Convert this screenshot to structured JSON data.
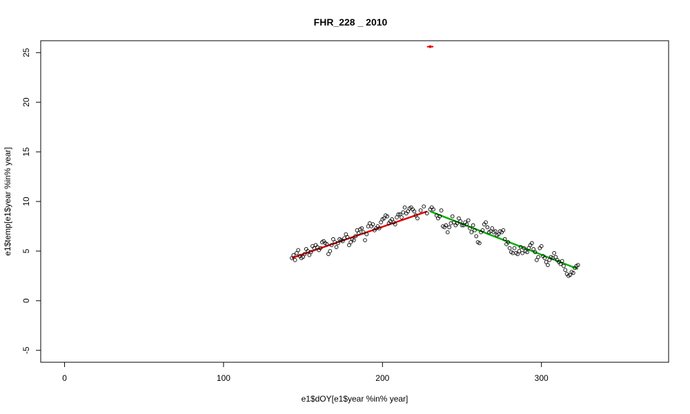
{
  "chart_data": {
    "type": "scatter",
    "title": "FHR_228 _ 2010",
    "xlabel": "e1$dOY[e1$year %in% year]",
    "ylabel": "e1$temp[e1$year %in% year]",
    "xlim": [
      -15,
      380
    ],
    "ylim": [
      -6.2,
      26.2
    ],
    "x_ticks": [
      0,
      100,
      200,
      300
    ],
    "y_ticks": [
      -5,
      0,
      5,
      10,
      15,
      20,
      25
    ],
    "grid": false,
    "legend": "none",
    "colors": {
      "points": "#000000",
      "segment1": "#e00000",
      "segment2": "#00b000",
      "breakpoint": "#e00000"
    },
    "points": [
      [
        143,
        4.3
      ],
      [
        144,
        4.6
      ],
      [
        145,
        4.1
      ],
      [
        146,
        4.8
      ],
      [
        147,
        5.1
      ],
      [
        148,
        4.5
      ],
      [
        149,
        4.3
      ],
      [
        150,
        4.4
      ],
      [
        151,
        4.7
      ],
      [
        152,
        5.2
      ],
      [
        153,
        5.0
      ],
      [
        154,
        4.6
      ],
      [
        155,
        4.9
      ],
      [
        156,
        5.5
      ],
      [
        157,
        5.3
      ],
      [
        158,
        5.6
      ],
      [
        159,
        5.4
      ],
      [
        160,
        5.1
      ],
      [
        161,
        5.3
      ],
      [
        162,
        5.9
      ],
      [
        163,
        6.0
      ],
      [
        164,
        5.8
      ],
      [
        165,
        5.7
      ],
      [
        166,
        4.7
      ],
      [
        167,
        5.0
      ],
      [
        168,
        5.6
      ],
      [
        169,
        6.2
      ],
      [
        170,
        5.9
      ],
      [
        171,
        5.4
      ],
      [
        172,
        5.8
      ],
      [
        173,
        6.2
      ],
      [
        174,
        6.1
      ],
      [
        175,
        6.0
      ],
      [
        176,
        6.3
      ],
      [
        177,
        6.7
      ],
      [
        178,
        6.4
      ],
      [
        179,
        5.6
      ],
      [
        180,
        5.9
      ],
      [
        181,
        6.2
      ],
      [
        182,
        6.1
      ],
      [
        183,
        6.5
      ],
      [
        184,
        7.1
      ],
      [
        185,
        6.8
      ],
      [
        186,
        7.2
      ],
      [
        187,
        7.3
      ],
      [
        188,
        6.9
      ],
      [
        189,
        6.1
      ],
      [
        190,
        6.7
      ],
      [
        191,
        7.5
      ],
      [
        192,
        7.8
      ],
      [
        193,
        7.5
      ],
      [
        194,
        7.7
      ],
      [
        195,
        7.1
      ],
      [
        196,
        7.3
      ],
      [
        197,
        7.5
      ],
      [
        198,
        7.3
      ],
      [
        199,
        7.9
      ],
      [
        200,
        8.2
      ],
      [
        201,
        8.3
      ],
      [
        202,
        8.6
      ],
      [
        203,
        8.5
      ],
      [
        204,
        7.8
      ],
      [
        205,
        8.0
      ],
      [
        206,
        8.2
      ],
      [
        207,
        7.9
      ],
      [
        208,
        7.7
      ],
      [
        209,
        8.4
      ],
      [
        210,
        8.7
      ],
      [
        211,
        8.7
      ],
      [
        212,
        8.4
      ],
      [
        213,
        8.9
      ],
      [
        214,
        9.4
      ],
      [
        215,
        8.8
      ],
      [
        216,
        9.0
      ],
      [
        217,
        9.3
      ],
      [
        218,
        9.4
      ],
      [
        219,
        9.2
      ],
      [
        220,
        9.0
      ],
      [
        221,
        8.6
      ],
      [
        222,
        8.3
      ],
      [
        224,
        9.1
      ],
      [
        226,
        9.5
      ],
      [
        228,
        8.8
      ],
      [
        230,
        9.2
      ],
      [
        231,
        9.4
      ],
      [
        232,
        9.2
      ],
      [
        234,
        8.6
      ],
      [
        235,
        8.3
      ],
      [
        236,
        8.5
      ],
      [
        237,
        9.1
      ],
      [
        238,
        7.5
      ],
      [
        239,
        7.4
      ],
      [
        240,
        7.6
      ],
      [
        241,
        6.9
      ],
      [
        242,
        7.4
      ],
      [
        243,
        7.8
      ],
      [
        244,
        8.5
      ],
      [
        245,
        7.9
      ],
      [
        246,
        7.6
      ],
      [
        247,
        7.8
      ],
      [
        248,
        8.3
      ],
      [
        249,
        8.0
      ],
      [
        250,
        7.6
      ],
      [
        251,
        7.6
      ],
      [
        252,
        7.9
      ],
      [
        253,
        7.7
      ],
      [
        254,
        8.1
      ],
      [
        255,
        7.3
      ],
      [
        256,
        6.9
      ],
      [
        257,
        7.6
      ],
      [
        258,
        7.1
      ],
      [
        259,
        6.5
      ],
      [
        260,
        5.9
      ],
      [
        261,
        5.8
      ],
      [
        262,
        6.9
      ],
      [
        263,
        7.1
      ],
      [
        264,
        7.7
      ],
      [
        265,
        7.9
      ],
      [
        266,
        7.4
      ],
      [
        267,
        6.9
      ],
      [
        268,
        7.0
      ],
      [
        269,
        7.3
      ],
      [
        270,
        6.9
      ],
      [
        271,
        7.0
      ],
      [
        272,
        6.6
      ],
      [
        273,
        6.7
      ],
      [
        274,
        7.0
      ],
      [
        275,
        6.9
      ],
      [
        276,
        7.1
      ],
      [
        277,
        6.2
      ],
      [
        278,
        5.7
      ],
      [
        279,
        5.9
      ],
      [
        280,
        5.3
      ],
      [
        281,
        4.9
      ],
      [
        282,
        4.8
      ],
      [
        283,
        5.3
      ],
      [
        284,
        4.8
      ],
      [
        285,
        4.7
      ],
      [
        286,
        5.0
      ],
      [
        287,
        5.4
      ],
      [
        288,
        4.8
      ],
      [
        289,
        5.3
      ],
      [
        290,
        5.0
      ],
      [
        291,
        4.9
      ],
      [
        292,
        5.3
      ],
      [
        293,
        5.6
      ],
      [
        294,
        5.8
      ],
      [
        295,
        5.2
      ],
      [
        296,
        4.9
      ],
      [
        297,
        4.1
      ],
      [
        298,
        4.4
      ],
      [
        299,
        5.3
      ],
      [
        300,
        5.5
      ],
      [
        301,
        4.5
      ],
      [
        302,
        4.3
      ],
      [
        303,
        3.9
      ],
      [
        304,
        3.6
      ],
      [
        305,
        4.1
      ],
      [
        306,
        4.4
      ],
      [
        307,
        4.3
      ],
      [
        308,
        4.8
      ],
      [
        309,
        4.4
      ],
      [
        310,
        4.1
      ],
      [
        311,
        3.9
      ],
      [
        312,
        3.7
      ],
      [
        313,
        4.0
      ],
      [
        314,
        3.5
      ],
      [
        315,
        3.1
      ],
      [
        316,
        2.7
      ],
      [
        317,
        2.5
      ],
      [
        318,
        2.6
      ],
      [
        319,
        2.9
      ],
      [
        320,
        2.8
      ],
      [
        321,
        3.3
      ],
      [
        322,
        3.5
      ],
      [
        323,
        3.6
      ]
    ],
    "segments": [
      {
        "x": [
          143,
          228
        ],
        "y": [
          4.3,
          9.0
        ],
        "color": "#e00000"
      },
      {
        "x": [
          230,
          323
        ],
        "y": [
          9.0,
          3.2
        ],
        "color": "#00b000"
      }
    ],
    "breakpoint": {
      "x": 230,
      "y": 25.6,
      "x_err": [
        228,
        232
      ]
    }
  }
}
